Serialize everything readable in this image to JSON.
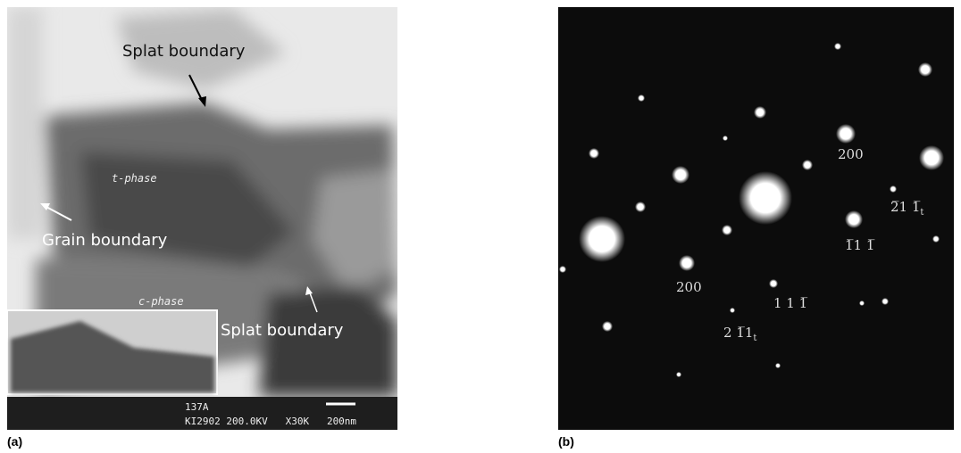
{
  "figure": {
    "panels": [
      {
        "label": "(a)",
        "annotations": {
          "splat_top": "Splat boundary",
          "t_phase": "t-phase",
          "grain": "Grain boundary",
          "c_phase": "c-phase",
          "splat_bottom": "Splat boundary"
        },
        "data_bar": {
          "line1": "137A",
          "line2": "KI2902 200.0KV   X30K   200nm"
        }
      },
      {
        "label": "(b)",
        "spot_labels": [
          {
            "text": "200"
          },
          {
            "text": "2̅1 1̅",
            "subscript": "t"
          },
          {
            "text": "1̅1 1̅"
          },
          {
            "text": "200"
          },
          {
            "text": "1 1 1̅"
          },
          {
            "text": "2 1̅1",
            "subscript": "t"
          }
        ]
      }
    ]
  }
}
